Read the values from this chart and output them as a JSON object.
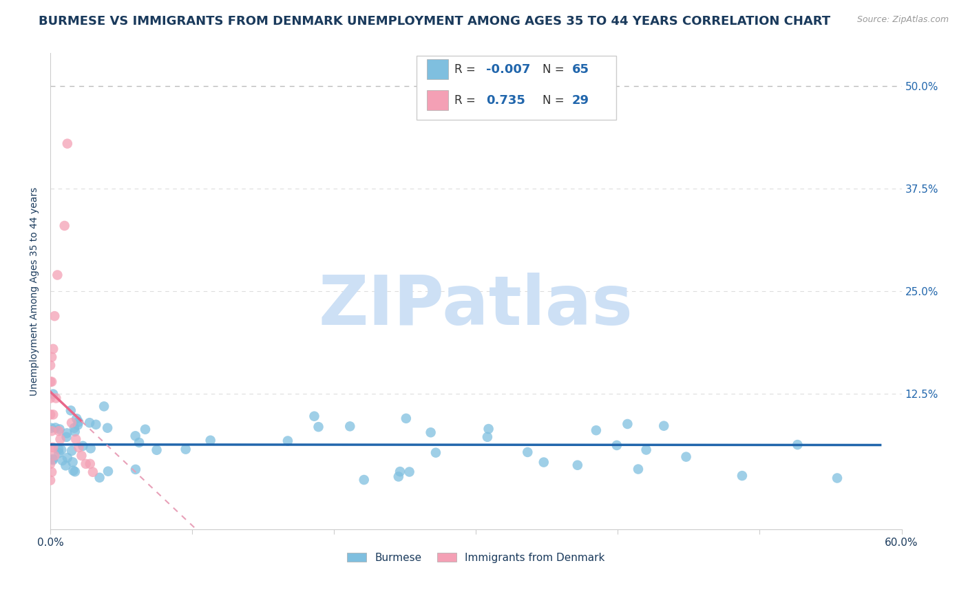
{
  "title": "BURMESE VS IMMIGRANTS FROM DENMARK UNEMPLOYMENT AMONG AGES 35 TO 44 YEARS CORRELATION CHART",
  "source_text": "Source: ZipAtlas.com",
  "ylabel": "Unemployment Among Ages 35 to 44 years",
  "xlim": [
    0.0,
    0.6
  ],
  "ylim": [
    -0.04,
    0.54
  ],
  "background_color": "#ffffff",
  "title_color": "#1a3a5c",
  "title_fontsize": 13,
  "watermark_text": "ZIPatlas",
  "watermark_color": "#cde0f5",
  "watermark_fontsize": 72,
  "legend_r_color": "#2166ac",
  "legend_n_color": "#1a3a5c",
  "blue_color": "#7fbfdf",
  "pink_color": "#f4a0b5",
  "blue_line_color": "#2166ac",
  "pink_line_color": "#e8688a",
  "pink_dash_color": "#e8a0b8",
  "source_color": "#999999",
  "grid_color": "#cccccc",
  "ytick_color": "#2166ac"
}
